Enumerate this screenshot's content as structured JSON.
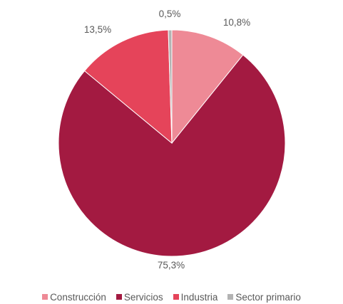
{
  "chart_data": {
    "type": "pie",
    "title": "",
    "start_angle_deg": 0,
    "direction": "clockwise",
    "legend_position": "bottom",
    "slices": [
      {
        "name": "Construcción",
        "value": 10.8,
        "label": "10,8%",
        "color": "#ee8a96"
      },
      {
        "name": "Servicios",
        "value": 75.3,
        "label": "75,3%",
        "color": "#a31a41"
      },
      {
        "name": "Industria",
        "value": 13.5,
        "label": "13,5%",
        "color": "#e5445a"
      },
      {
        "name": "Sector primario",
        "value": 0.5,
        "label": "0,5%",
        "color": "#b3b3b3"
      }
    ]
  }
}
